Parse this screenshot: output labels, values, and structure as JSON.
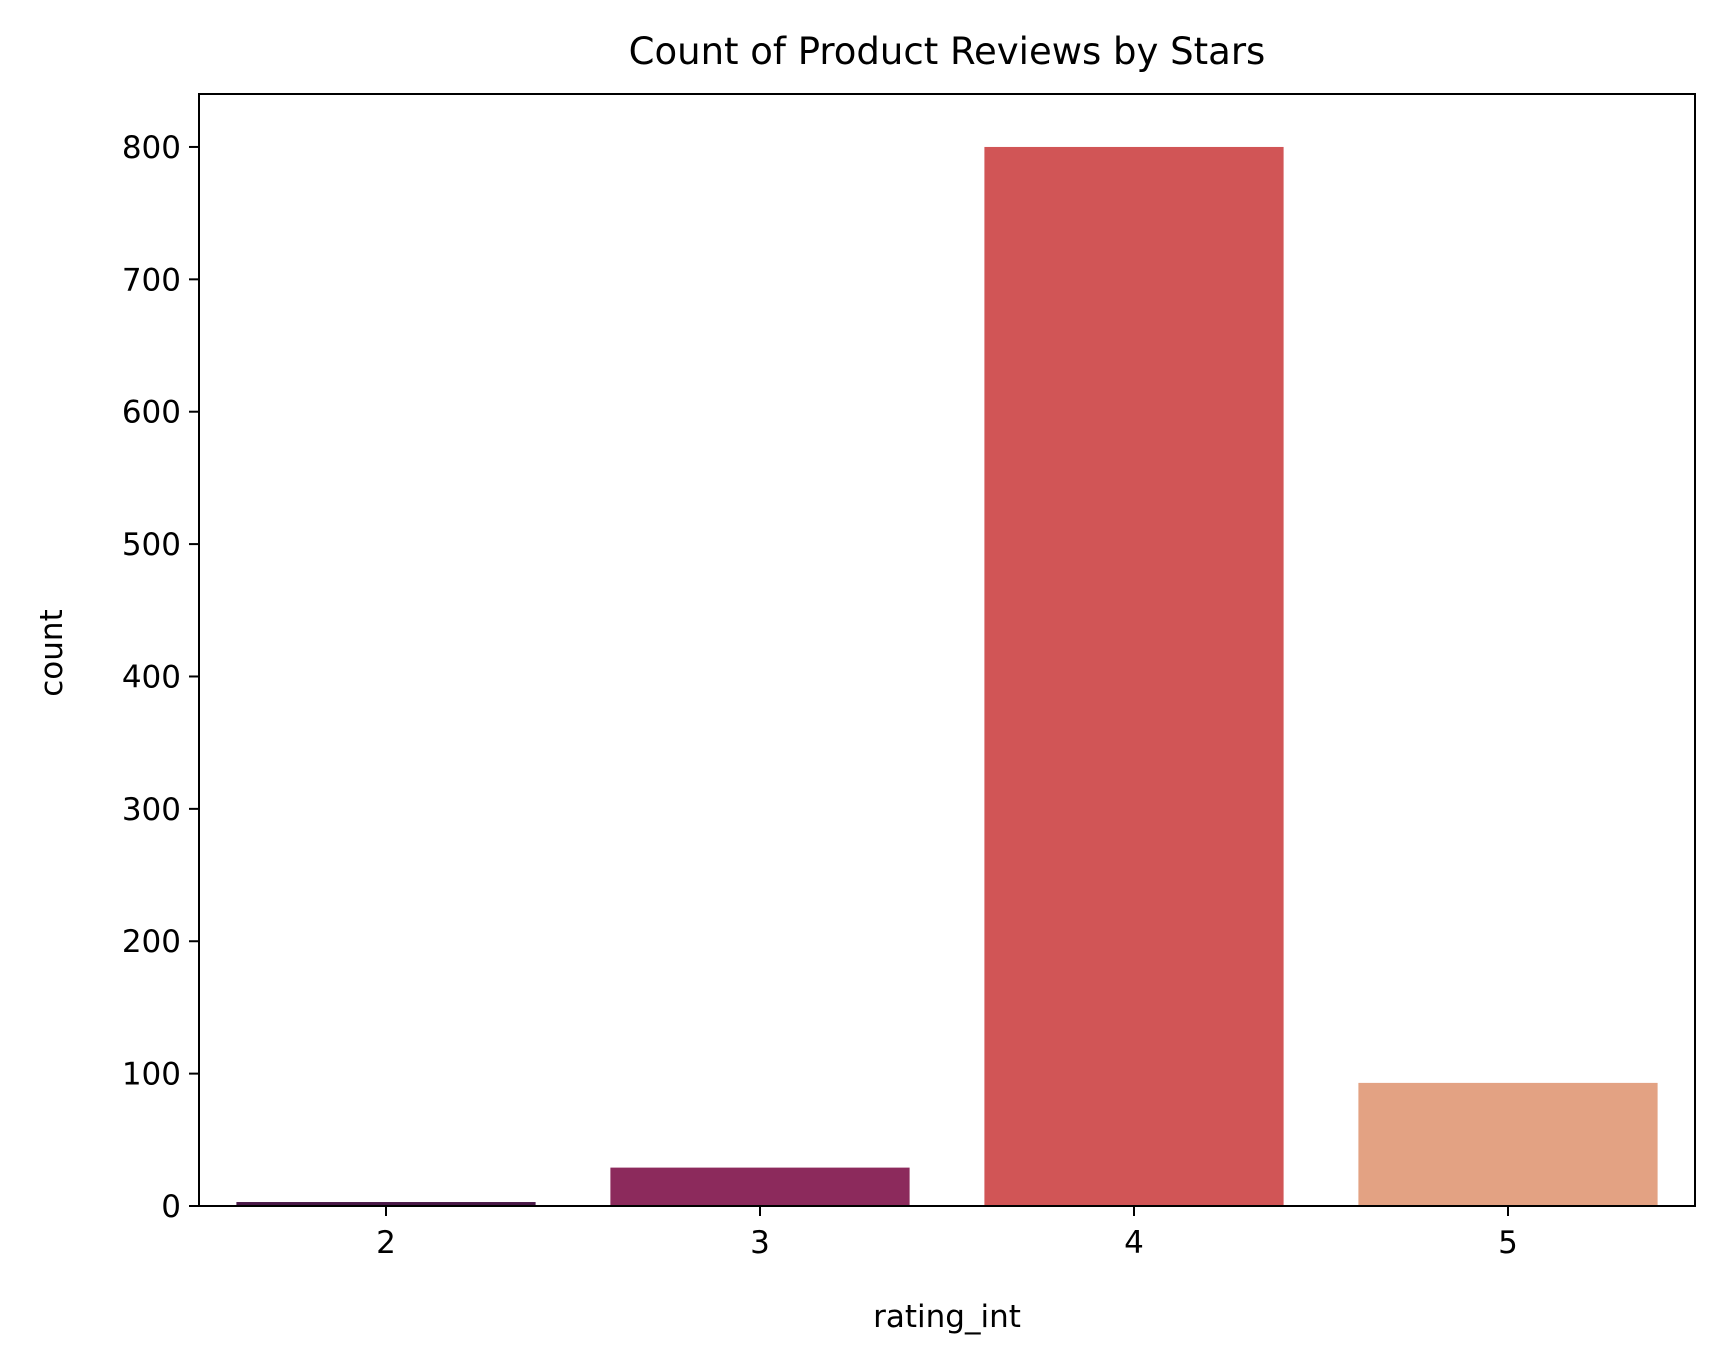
{
  "chart_data": {
    "type": "bar",
    "title": "Count of Product Reviews by Stars",
    "xlabel": "rating_int",
    "ylabel": "count",
    "categories": [
      "2",
      "3",
      "4",
      "5"
    ],
    "values": [
      3,
      29,
      800,
      93
    ],
    "colors": [
      "#4a1848",
      "#8c2a5c",
      "#d15556",
      "#e3a283"
    ],
    "ylim": [
      0,
      840
    ],
    "yticks": [
      0,
      100,
      200,
      300,
      400,
      500,
      600,
      700,
      800
    ],
    "grid": false,
    "legend": "none"
  }
}
